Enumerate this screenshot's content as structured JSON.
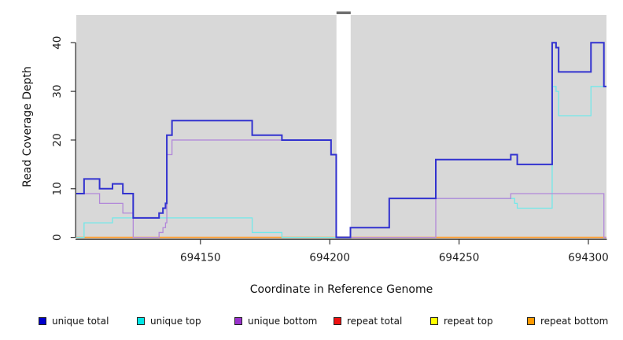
{
  "figure": {
    "x_axis_label": "Coordinate in Reference Genome",
    "y_axis_label": "Read Coverage Depth"
  },
  "chart_data": {
    "type": "line",
    "subtype": "step-after",
    "title": "",
    "xlabel": "Coordinate in Reference Genome",
    "ylabel": "Read Coverage Depth",
    "xlim": [
      694102,
      694307
    ],
    "ylim": [
      -0.3,
      45.7
    ],
    "x_ticks": [
      694150,
      694200,
      694250,
      694300
    ],
    "y_ticks": [
      0,
      10,
      20,
      30,
      40
    ],
    "grid": false,
    "plot_background": "#d8d8d8",
    "axis_color": "#222222",
    "gap_region": {
      "x_start": 694202.6,
      "x_end": 694208.1,
      "fill": "#ffffff",
      "cap_color": "#707070"
    },
    "series": [
      {
        "id": "repeat-total",
        "name": "repeat total",
        "color": "#dd3333",
        "legend_color": "#ee1111",
        "width": 1.3,
        "steps": [
          [
            694102,
            0
          ]
        ]
      },
      {
        "id": "repeat-top",
        "name": "repeat top",
        "color": "#f2e32a",
        "legend_color": "#ffff00",
        "width": 1.3,
        "steps": [
          [
            694102,
            0
          ]
        ]
      },
      {
        "id": "repeat-bottom",
        "name": "repeat bottom",
        "color": "#ff9d2e",
        "legend_color": "#ff9900",
        "width": 1.7,
        "steps": [
          [
            694102,
            0
          ]
        ]
      },
      {
        "id": "unique-top",
        "name": "unique top",
        "color": "#72e8e9",
        "legend_color": "#00e6e6",
        "width": 1.3,
        "steps": [
          [
            694102,
            0
          ],
          [
            694105,
            3
          ],
          [
            694116,
            4
          ],
          [
            694170,
            1
          ],
          [
            694181.5,
            0
          ],
          [
            694208,
            2
          ],
          [
            694223,
            8
          ],
          [
            694271.5,
            7
          ],
          [
            694272.5,
            6
          ],
          [
            694286,
            31
          ],
          [
            694287.5,
            30
          ],
          [
            694288.5,
            25
          ],
          [
            694301,
            31
          ]
        ]
      },
      {
        "id": "unique-bottom",
        "name": "unique bottom",
        "color": "#b288d9",
        "legend_color": "#9932cc",
        "width": 1.3,
        "steps": [
          [
            694102,
            9
          ],
          [
            694111,
            7
          ],
          [
            694120,
            5
          ],
          [
            694124,
            0
          ],
          [
            694134,
            1
          ],
          [
            694135.5,
            2
          ],
          [
            694136.5,
            3
          ],
          [
            694137,
            17
          ],
          [
            694139,
            20
          ],
          [
            694200.5,
            17
          ],
          [
            694202.5,
            0
          ],
          [
            694241,
            8
          ],
          [
            694270,
            9
          ],
          [
            694306,
            0
          ]
        ]
      },
      {
        "id": "unique-total",
        "name": "unique total",
        "color": "#3232cf",
        "legend_color": "#0000cc",
        "width": 2,
        "steps": [
          [
            694102,
            9
          ],
          [
            694105,
            12
          ],
          [
            694111,
            10
          ],
          [
            694116,
            11
          ],
          [
            694120,
            9
          ],
          [
            694124,
            4
          ],
          [
            694134,
            5
          ],
          [
            694135.5,
            6
          ],
          [
            694136.5,
            7
          ],
          [
            694137,
            21
          ],
          [
            694139,
            24
          ],
          [
            694170,
            21
          ],
          [
            694181.5,
            20
          ],
          [
            694200.5,
            17
          ],
          [
            694202.5,
            0
          ],
          [
            694208,
            2
          ],
          [
            694223,
            8
          ],
          [
            694241,
            16
          ],
          [
            694270,
            17
          ],
          [
            694272.5,
            15
          ],
          [
            694286,
            40
          ],
          [
            694287.5,
            39
          ],
          [
            694288.5,
            34
          ],
          [
            694301,
            40
          ],
          [
            694306,
            31
          ]
        ]
      }
    ],
    "legend_items": [
      {
        "label": "unique total",
        "color": "#0000cc"
      },
      {
        "label": "unique top",
        "color": "#00e6e6"
      },
      {
        "label": "unique bottom",
        "color": "#9932cc"
      },
      {
        "label": "repeat total",
        "color": "#ee1111"
      },
      {
        "label": "repeat top",
        "color": "#ffff00"
      },
      {
        "label": "repeat bottom",
        "color": "#ff9900"
      }
    ]
  }
}
